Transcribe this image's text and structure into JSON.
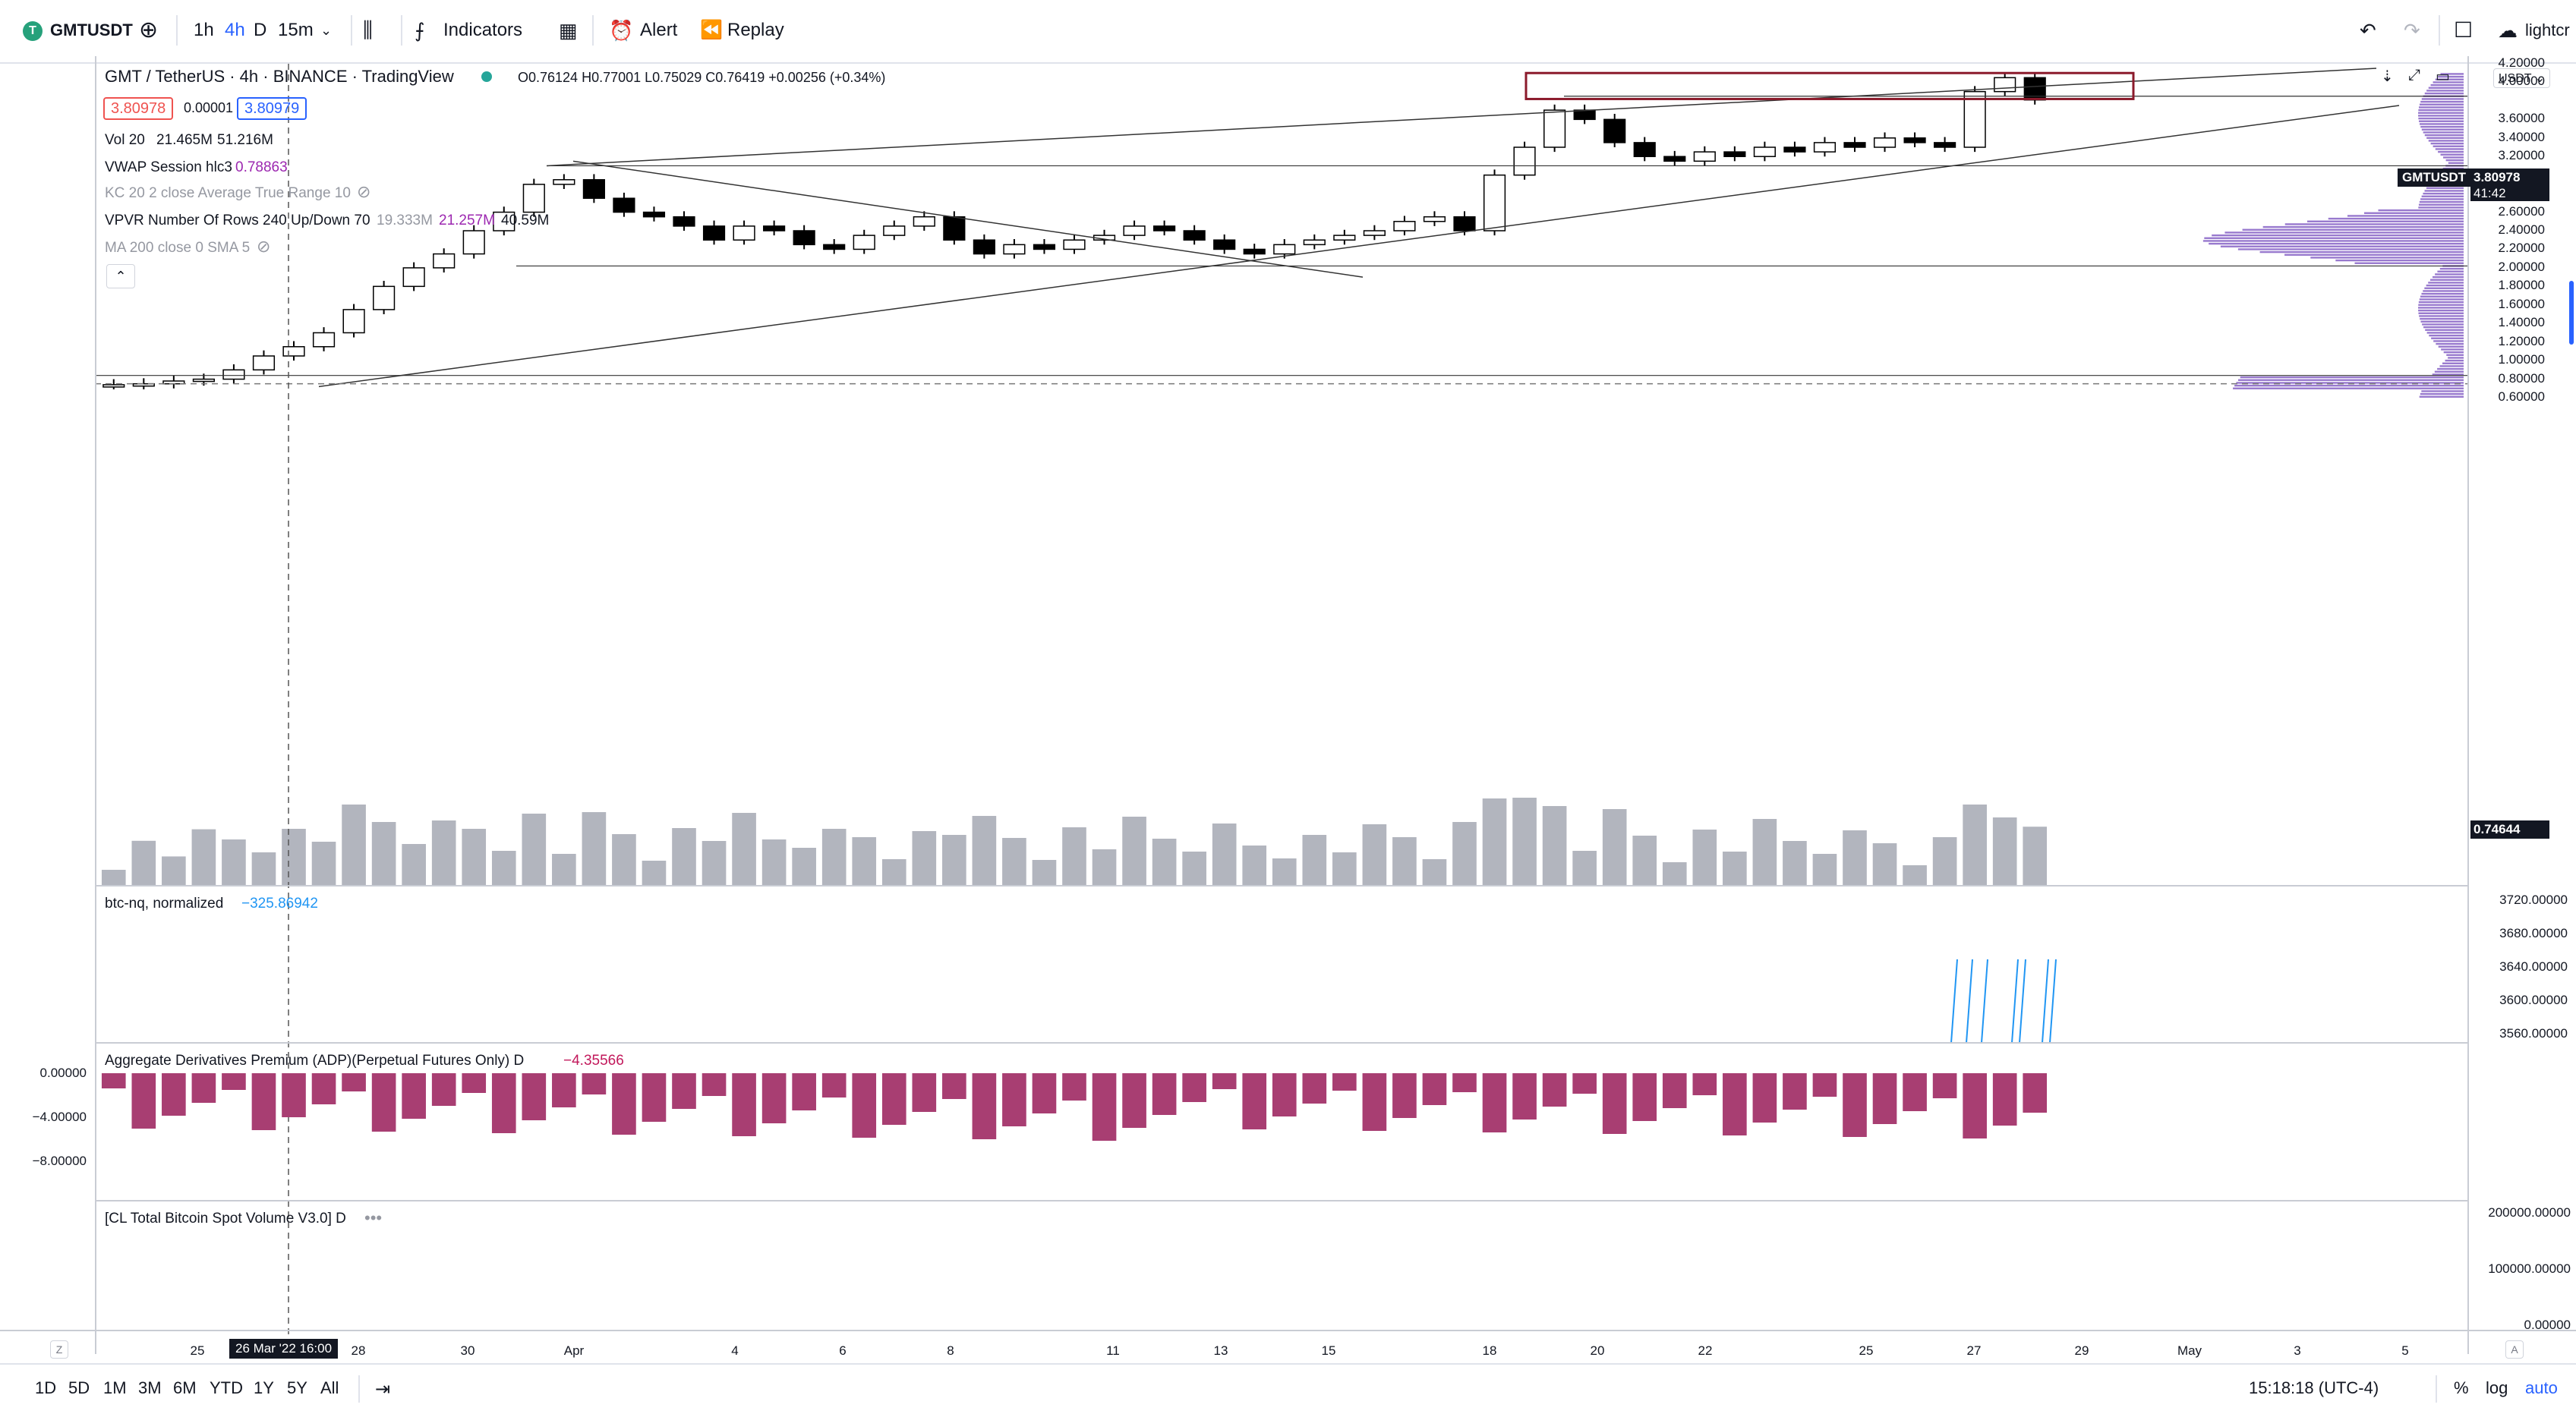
{
  "toolbar": {
    "symbol": "GMTUSDT",
    "symbol_icon_glyph": "T",
    "intervals": [
      "1h",
      "4h",
      "D",
      "15m"
    ],
    "active_interval": "4h",
    "indicators_label": "Indicators",
    "alert_label": "Alert",
    "replay_label": "Replay",
    "account_label": "lightcr"
  },
  "main_legend": {
    "title": "GMT / TetherUS · 4h · BINANCE · TradingView",
    "ohlc": "O0.76124 H0.77001 L0.75029 C0.76419 +0.00256 (+0.34%)",
    "bid": "3.80978",
    "spread": "0.00001",
    "ask": "3.80979",
    "vol_label": "Vol 20",
    "vol_v1": "21.465M",
    "vol_v2": "51.216M",
    "vwap_label": "VWAP Session hlc3",
    "vwap_value": "0.78863",
    "kc_label": "KC 20 2 close Average True Range 10",
    "vpvr_label": "VPVR Number Of Rows 240 Up/Down 70",
    "vpvr_v1": "19.333M",
    "vpvr_v2": "21.257M",
    "vpvr_v3": "40.59M",
    "ma_label": "MA 200 close 0 SMA 5"
  },
  "price_axis": {
    "currency": "USDT",
    "ticks": [
      "4.20000",
      "4.00000",
      "3.60000",
      "3.40000",
      "3.20000",
      "3.00000",
      "2.80000",
      "2.60000",
      "2.40000",
      "2.20000",
      "2.00000",
      "1.80000",
      "1.60000",
      "1.40000",
      "1.20000",
      "1.00000",
      "0.80000",
      "0.60000"
    ],
    "last_symbol": "GMTUSDT",
    "last_price": "3.80978",
    "countdown": "41:42",
    "vwap_tag": "0.74644"
  },
  "pane_btc": {
    "label": "btc-nq, normalized",
    "value": "−325.86942",
    "ticks": [
      "3720.00000",
      "3680.00000",
      "3640.00000",
      "3600.00000",
      "3560.00000"
    ]
  },
  "pane_adp": {
    "label": "Aggregate Derivatives Premium (ADP)(Perpetual Futures Only) D",
    "value": "−4.35566",
    "left_ticks": [
      "0.00000",
      "−4.00000",
      "−8.00000"
    ]
  },
  "pane_cl": {
    "label": "[CL Total Bitcoin Spot Volume V3.0] D",
    "ticks": [
      "200000.00000",
      "100000.00000",
      "0.00000"
    ]
  },
  "time_axis": {
    "ticks": [
      "25",
      "28",
      "30",
      "Apr",
      "4",
      "6",
      "8",
      "11",
      "13",
      "15",
      "18",
      "20",
      "22",
      "25",
      "27",
      "29",
      "May",
      "3",
      "5"
    ],
    "crosshair_label": "26 Mar '22   16:00",
    "z_label": "Z",
    "a_label": "A"
  },
  "bottom_bar": {
    "ranges": [
      "1D",
      "5D",
      "1M",
      "3M",
      "6M",
      "YTD",
      "1Y",
      "5Y",
      "All"
    ],
    "clock": "15:18:18 (UTC-4)",
    "percent_label": "%",
    "log_label": "log",
    "auto_label": "auto"
  },
  "colors": {
    "up": "#ffffff",
    "down": "#000000",
    "volume": "#b2b5be",
    "vpvr": "#7e57c2",
    "adp": "#a83e72",
    "btc": "#2196f3",
    "box": "#8b1a2b"
  },
  "chart_data": {
    "type": "candlestick",
    "price_range": [
      0.55,
      4.25
    ],
    "candles_close_approx": [
      0.74,
      0.75,
      0.78,
      0.8,
      0.9,
      1.05,
      1.15,
      1.3,
      1.55,
      1.8,
      2.0,
      2.15,
      2.4,
      2.6,
      2.9,
      2.95,
      2.75,
      2.6,
      2.55,
      2.45,
      2.3,
      2.45,
      2.4,
      2.25,
      2.2,
      2.35,
      2.45,
      2.55,
      2.3,
      2.15,
      2.25,
      2.2,
      2.3,
      2.35,
      2.45,
      2.4,
      2.3,
      2.2,
      2.15,
      2.25,
      2.3,
      2.35,
      2.4,
      2.5,
      2.55,
      2.4,
      3.0,
      3.3,
      3.7,
      3.6,
      3.35,
      3.2,
      3.15,
      3.25,
      3.2,
      3.3,
      3.25,
      3.35,
      3.3,
      3.4,
      3.35,
      3.3,
      3.9,
      4.05,
      3.81
    ]
  }
}
